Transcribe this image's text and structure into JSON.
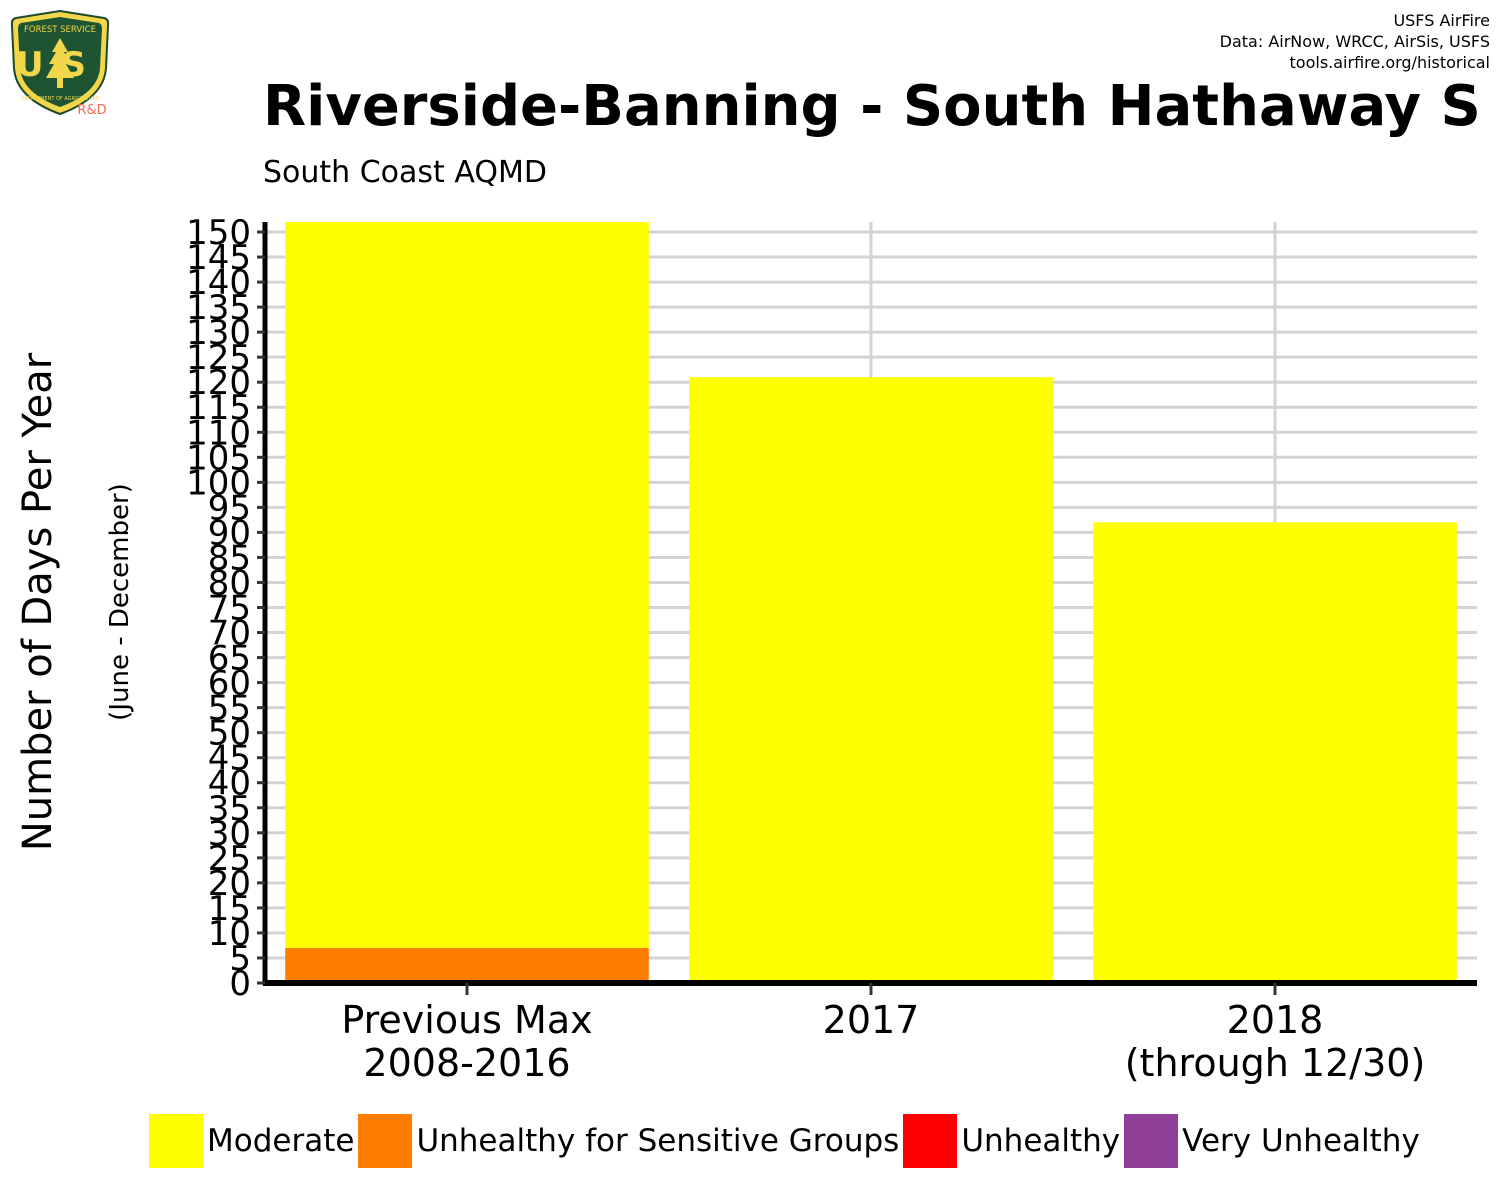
{
  "credits": {
    "line1": "USFS AirFire",
    "line2": "Data: AirNow, WRCC, AirSis, USFS",
    "line3": "tools.airfire.org/historical"
  },
  "logo": {
    "top_text": "FOREST SERVICE",
    "letters": "US",
    "bottom_text": "DEPARTMENT OF AGRICULTURE",
    "tag": "R&D"
  },
  "chart_data": {
    "type": "bar",
    "stacked": true,
    "title": "Riverside-Banning - South Hathaway S",
    "subtitle": "South Coast AQMD",
    "ylabel": "Number of Days Per Year",
    "ylabel_sub": "(June - December)",
    "xlabel": "",
    "ylim": [
      0,
      152
    ],
    "yticks": [
      0,
      5,
      10,
      15,
      20,
      25,
      30,
      35,
      40,
      45,
      50,
      55,
      60,
      65,
      70,
      75,
      80,
      85,
      90,
      95,
      100,
      105,
      110,
      115,
      120,
      125,
      130,
      135,
      140,
      145,
      150
    ],
    "grid": true,
    "legend_position": "bottom",
    "categories": [
      [
        "Previous Max",
        "2008-2016"
      ],
      [
        "2017"
      ],
      [
        "2018",
        "(through 12/30)"
      ]
    ],
    "series": [
      {
        "name": "Unhealthy for Sensitive Groups",
        "color": "#ff7e00",
        "values": [
          7,
          0,
          0
        ]
      },
      {
        "name": "Moderate",
        "color": "#ffff00",
        "values": [
          145,
          121,
          92
        ]
      },
      {
        "name": "Unhealthy",
        "color": "#ff0000",
        "values": [
          0,
          0,
          0
        ]
      },
      {
        "name": "Very Unhealthy",
        "color": "#8f3f97",
        "values": [
          0,
          0,
          0
        ]
      }
    ]
  },
  "legend": [
    {
      "label": "Moderate",
      "color": "#ffff00"
    },
    {
      "label": "Unhealthy for Sensitive Groups",
      "color": "#ff7e00"
    },
    {
      "label": "Unhealthy",
      "color": "#ff0000"
    },
    {
      "label": "Very Unhealthy",
      "color": "#8f3f97"
    }
  ]
}
